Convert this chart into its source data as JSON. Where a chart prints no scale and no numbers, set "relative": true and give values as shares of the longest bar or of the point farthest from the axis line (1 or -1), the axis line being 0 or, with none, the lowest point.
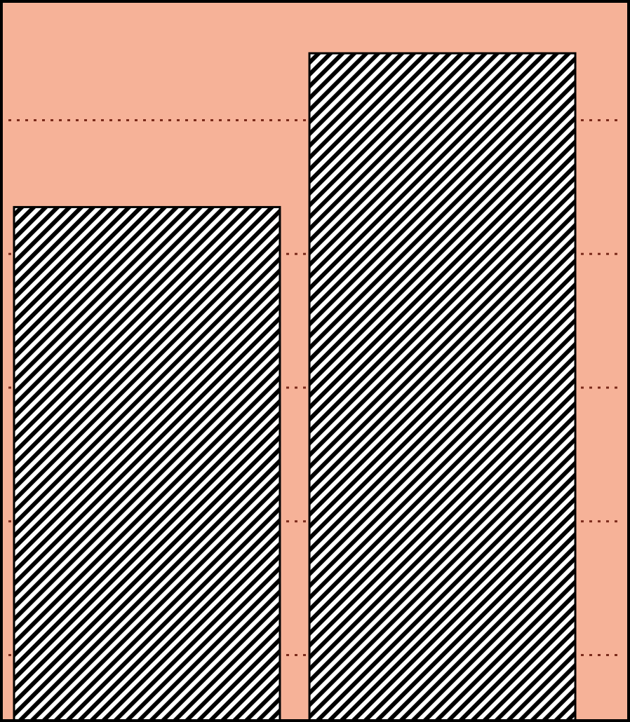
{
  "chart_data": {
    "type": "bar",
    "categories": [
      null,
      null
    ],
    "values": [
      0.77,
      1
    ],
    "relative": true,
    "color": "#000000",
    "ref_lines": [
      {
        "axis": "y",
        "value": 0.1,
        "color": "#7a2a1a",
        "line_style": "dotted"
      },
      {
        "axis": "y",
        "value": 0.3,
        "color": "#7a2a1a",
        "line_style": "dotted"
      },
      {
        "axis": "y",
        "value": 0.5,
        "color": "#7a2a1a",
        "line_style": "dotted"
      },
      {
        "axis": "y",
        "value": 0.7,
        "color": "#7a2a1a",
        "line_style": "dotted"
      },
      {
        "axis": "y",
        "value": 0.9,
        "color": "#7a2a1a",
        "line_style": "dotted"
      }
    ]
  }
}
